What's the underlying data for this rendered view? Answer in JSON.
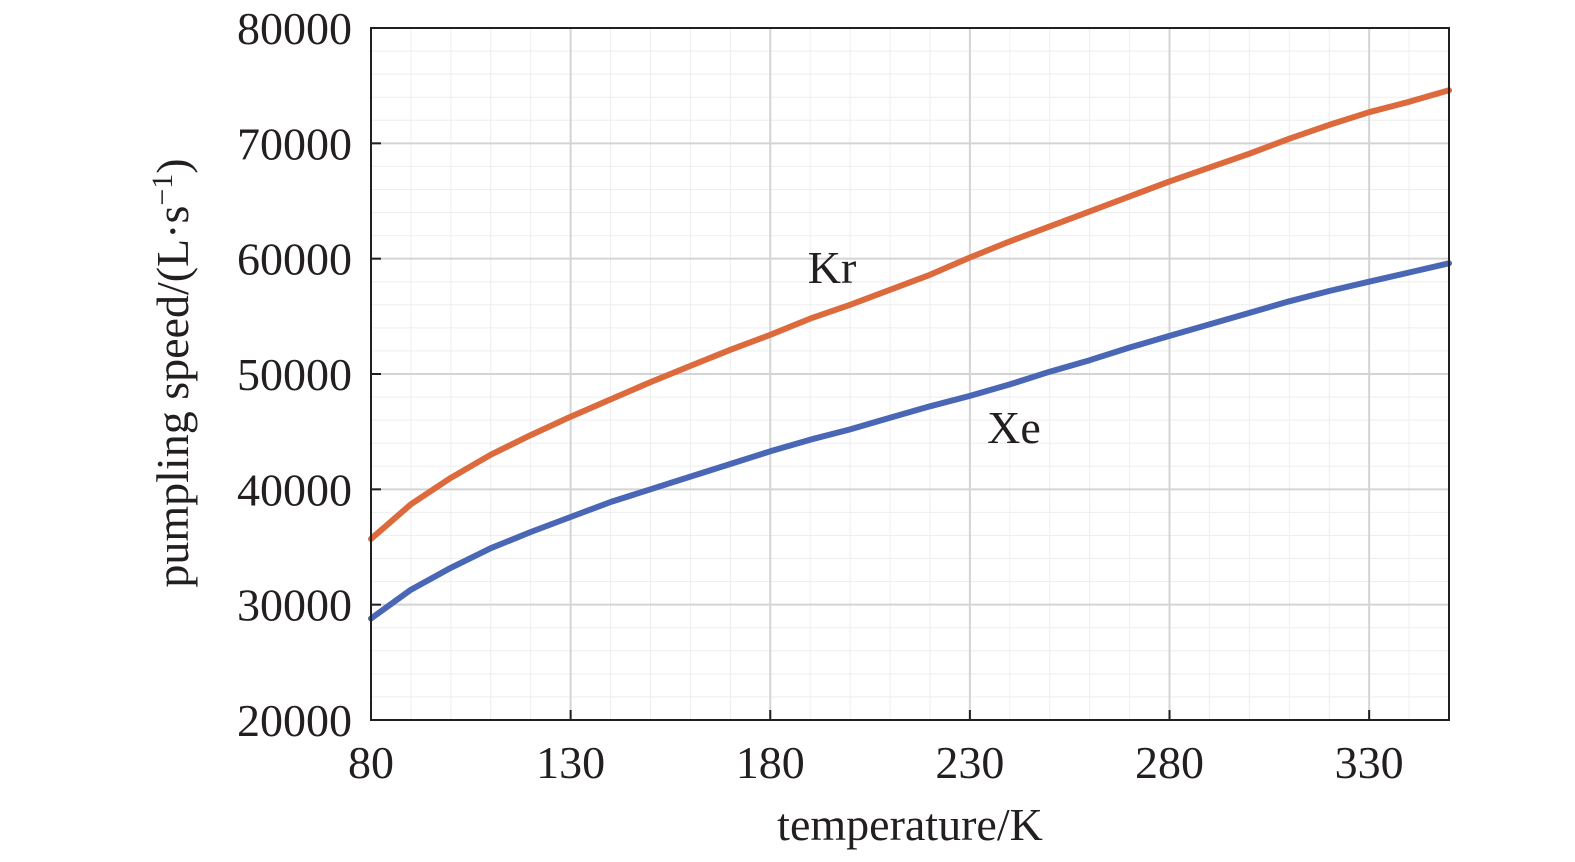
{
  "chart_data": {
    "type": "line",
    "title": "",
    "xlabel": "temperature/K",
    "ylabel": "pumpling speed/(L·s",
    "ylabel_sup": "−1",
    "ylabel_close": ")",
    "xlim": [
      80,
      350
    ],
    "ylim": [
      20000,
      80000
    ],
    "xticks": [
      80,
      130,
      180,
      230,
      280,
      330
    ],
    "yticks": [
      20000,
      30000,
      40000,
      50000,
      60000,
      70000,
      80000
    ],
    "xtick_labels": [
      "80",
      "130",
      "180",
      "230",
      "280",
      "330"
    ],
    "ytick_labels": [
      "20000",
      "30000",
      "40000",
      "50000",
      "60000",
      "70000",
      "80000"
    ],
    "x_minor_step": 10,
    "y_minor_step": 2000,
    "grid": true,
    "series": [
      {
        "name": "Kr",
        "color": "#dc6a3c",
        "x": [
          80,
          90,
          100,
          110,
          120,
          130,
          140,
          150,
          160,
          170,
          180,
          190,
          200,
          210,
          220,
          230,
          240,
          250,
          260,
          270,
          280,
          290,
          300,
          310,
          320,
          330,
          340,
          350
        ],
        "values": [
          35700,
          38700,
          41000,
          43000,
          44700,
          46300,
          47800,
          49300,
          50700,
          52100,
          53400,
          54800,
          56000,
          57300,
          58600,
          60100,
          61500,
          62800,
          64100,
          65400,
          66700,
          67900,
          69100,
          70400,
          71600,
          72700,
          73600,
          74600
        ]
      },
      {
        "name": "Xe",
        "color": "#4a67b5",
        "x": [
          80,
          90,
          100,
          110,
          120,
          130,
          140,
          150,
          160,
          170,
          180,
          190,
          200,
          210,
          220,
          230,
          240,
          250,
          260,
          270,
          280,
          290,
          300,
          310,
          320,
          330,
          340,
          350
        ],
        "values": [
          28800,
          31300,
          33200,
          34900,
          36300,
          37600,
          38900,
          40000,
          41100,
          42200,
          43300,
          44300,
          45200,
          46200,
          47200,
          48100,
          49100,
          50200,
          51200,
          52300,
          53300,
          54300,
          55300,
          56300,
          57200,
          58000,
          58800,
          59600
        ]
      }
    ]
  }
}
